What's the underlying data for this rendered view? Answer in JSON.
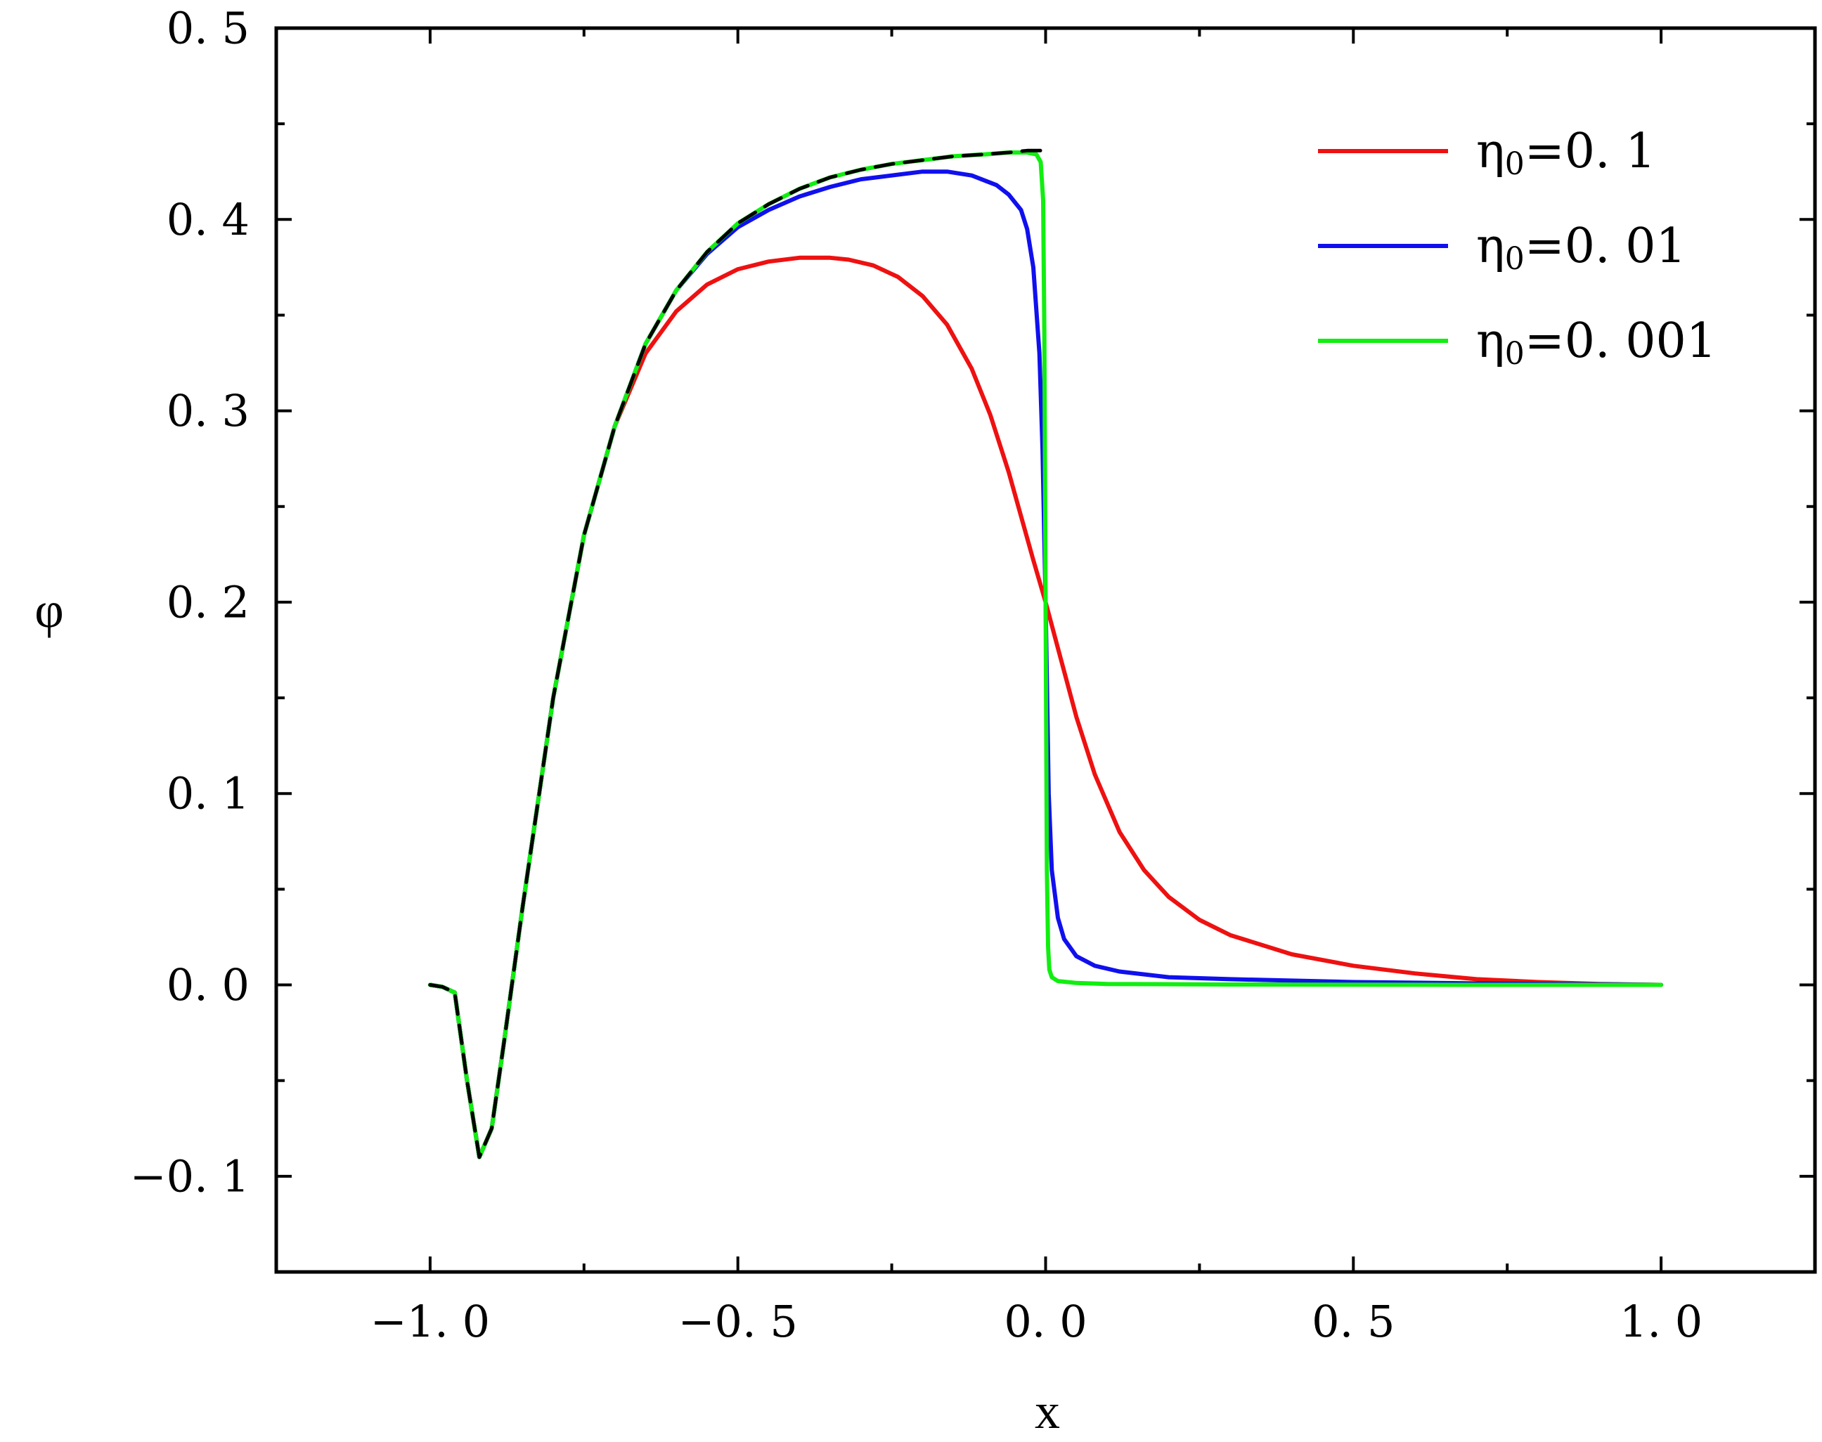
{
  "chart_data": {
    "type": "line",
    "title": "",
    "xlabel": "x",
    "ylabel": "φ",
    "xlim": [
      -1.25,
      1.25
    ],
    "ylim": [
      -0.15,
      0.5
    ],
    "x_ticks": [
      -1.0,
      -0.5,
      0.0,
      0.5,
      1.0
    ],
    "x_tick_labels": [
      "−1. 0",
      "−0. 5",
      "0. 0",
      "0. 5",
      "1. 0"
    ],
    "y_ticks": [
      -0.1,
      0.0,
      0.1,
      0.2,
      0.3,
      0.4,
      0.5
    ],
    "y_tick_labels": [
      "−0. 1",
      "0. 0",
      "0. 1",
      "0. 2",
      "0. 3",
      "0. 4",
      "0. 5"
    ],
    "grid": false,
    "legend_position": "top-right",
    "series": [
      {
        "name": "η0=0. 1",
        "legend_base": "η",
        "legend_sub": "0",
        "legend_value": "=0. 1",
        "color": "#ee1111",
        "dash": false,
        "x": [
          -1.0,
          -0.98,
          -0.96,
          -0.94,
          -0.92,
          -0.9,
          -0.88,
          -0.85,
          -0.8,
          -0.75,
          -0.7,
          -0.65,
          -0.6,
          -0.55,
          -0.5,
          -0.45,
          -0.4,
          -0.35,
          -0.32,
          -0.28,
          -0.24,
          -0.2,
          -0.16,
          -0.12,
          -0.09,
          -0.06,
          -0.04,
          -0.02,
          0.0,
          0.02,
          0.05,
          0.08,
          0.12,
          0.16,
          0.2,
          0.25,
          0.3,
          0.4,
          0.5,
          0.6,
          0.7,
          0.8,
          0.9,
          1.0
        ],
        "y": [
          0.0,
          -0.001,
          -0.004,
          -0.05,
          -0.09,
          -0.075,
          -0.03,
          0.04,
          0.15,
          0.235,
          0.292,
          0.33,
          0.352,
          0.366,
          0.374,
          0.378,
          0.38,
          0.38,
          0.379,
          0.376,
          0.37,
          0.36,
          0.345,
          0.322,
          0.298,
          0.268,
          0.245,
          0.222,
          0.2,
          0.176,
          0.14,
          0.11,
          0.08,
          0.06,
          0.046,
          0.034,
          0.026,
          0.016,
          0.01,
          0.006,
          0.003,
          0.0015,
          0.0005,
          0.0
        ]
      },
      {
        "name": "η0=0. 01",
        "legend_base": "η",
        "legend_sub": "0",
        "legend_value": "=0. 01",
        "color": "#1010ee",
        "dash": false,
        "x": [
          -1.0,
          -0.98,
          -0.96,
          -0.94,
          -0.92,
          -0.9,
          -0.88,
          -0.85,
          -0.8,
          -0.75,
          -0.7,
          -0.65,
          -0.6,
          -0.55,
          -0.5,
          -0.45,
          -0.4,
          -0.35,
          -0.3,
          -0.25,
          -0.2,
          -0.16,
          -0.12,
          -0.08,
          -0.06,
          -0.04,
          -0.03,
          -0.02,
          -0.01,
          -0.005,
          0.0,
          0.005,
          0.01,
          0.02,
          0.03,
          0.05,
          0.08,
          0.12,
          0.2,
          0.3,
          0.5,
          0.7,
          0.9,
          1.0
        ],
        "y": [
          0.0,
          -0.001,
          -0.004,
          -0.05,
          -0.09,
          -0.075,
          -0.03,
          0.04,
          0.15,
          0.235,
          0.292,
          0.335,
          0.363,
          0.382,
          0.396,
          0.405,
          0.412,
          0.417,
          0.421,
          0.423,
          0.425,
          0.425,
          0.423,
          0.418,
          0.413,
          0.405,
          0.395,
          0.375,
          0.33,
          0.28,
          0.2,
          0.1,
          0.06,
          0.035,
          0.024,
          0.015,
          0.01,
          0.007,
          0.004,
          0.003,
          0.0015,
          0.0008,
          0.0003,
          0.0
        ]
      },
      {
        "name": "η0=0. 001",
        "legend_base": "η",
        "legend_sub": "0",
        "legend_value": "=0. 001",
        "color": "#11ee11",
        "dash": false,
        "x": [
          -1.0,
          -0.98,
          -0.96,
          -0.94,
          -0.92,
          -0.9,
          -0.88,
          -0.85,
          -0.8,
          -0.75,
          -0.7,
          -0.65,
          -0.6,
          -0.55,
          -0.5,
          -0.45,
          -0.4,
          -0.35,
          -0.3,
          -0.25,
          -0.2,
          -0.15,
          -0.1,
          -0.06,
          -0.03,
          -0.015,
          -0.008,
          -0.004,
          -0.002,
          0.0,
          0.002,
          0.004,
          0.006,
          0.01,
          0.02,
          0.05,
          0.1,
          0.3,
          0.5,
          0.7,
          1.0
        ],
        "y": [
          0.0,
          -0.001,
          -0.004,
          -0.05,
          -0.09,
          -0.075,
          -0.03,
          0.04,
          0.15,
          0.235,
          0.292,
          0.335,
          0.363,
          0.383,
          0.398,
          0.408,
          0.416,
          0.422,
          0.426,
          0.429,
          0.431,
          0.433,
          0.434,
          0.435,
          0.435,
          0.434,
          0.43,
          0.41,
          0.34,
          0.2,
          0.06,
          0.02,
          0.008,
          0.004,
          0.002,
          0.001,
          0.0005,
          0.0002,
          0.0001,
          0.0,
          0.0
        ]
      },
      {
        "name": "",
        "color": "#000000",
        "dash": true,
        "x": [
          -1.0,
          -0.98,
          -0.96,
          -0.94,
          -0.92,
          -0.9,
          -0.88,
          -0.85,
          -0.8,
          -0.75,
          -0.7,
          -0.65,
          -0.6,
          -0.55,
          -0.5,
          -0.45,
          -0.4,
          -0.35,
          -0.3,
          -0.25,
          -0.2,
          -0.15,
          -0.1,
          -0.06,
          -0.03,
          0.0
        ],
        "y": [
          0.0,
          -0.001,
          -0.004,
          -0.05,
          -0.09,
          -0.075,
          -0.03,
          0.04,
          0.15,
          0.235,
          0.292,
          0.335,
          0.363,
          0.383,
          0.398,
          0.408,
          0.416,
          0.422,
          0.426,
          0.429,
          0.431,
          0.433,
          0.434,
          0.435,
          0.436,
          0.436
        ]
      }
    ]
  }
}
